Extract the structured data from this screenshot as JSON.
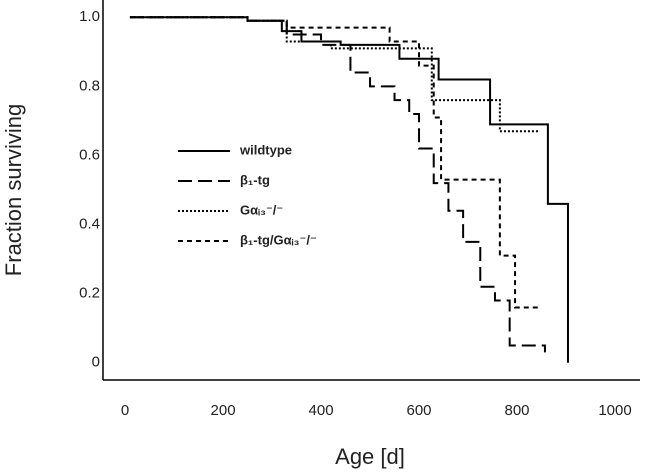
{
  "chart_data": {
    "type": "step",
    "xlabel": "Age [d]",
    "ylabel": "Fraction surviving",
    "xlim": [
      -45,
      1051
    ],
    "ylim": [
      -0.05,
      1.05
    ],
    "xticks": [
      0,
      200,
      400,
      600,
      800,
      1000
    ],
    "yticks": [
      0,
      0.2,
      0.4,
      0.6,
      0.8,
      {
        "value": 1,
        "label": "1.0"
      }
    ],
    "series": [
      {
        "name": "wildtype",
        "color": "#000000",
        "dash": "solid",
        "x": [
          10,
          250,
          320,
          360,
          440,
          560,
          640,
          745,
          863,
          904
        ],
        "values": [
          1.0,
          0.99,
          0.96,
          0.93,
          0.92,
          0.88,
          0.82,
          0.69,
          0.46,
          0.0
        ]
      },
      {
        "name": "β₁-tg",
        "color": "#000000",
        "dash": "long",
        "x": [
          10,
          250,
          330,
          400,
          460,
          500,
          550,
          580,
          600,
          630,
          660,
          690,
          725,
          755,
          785,
          857
        ],
        "values": [
          1.0,
          0.99,
          0.95,
          0.92,
          0.84,
          0.8,
          0.76,
          0.72,
          0.62,
          0.52,
          0.44,
          0.35,
          0.22,
          0.18,
          0.05,
          0.03
        ]
      },
      {
        "name": "Gαᵢ₃⁻/⁻",
        "color": "#000000",
        "dash": "dotted",
        "x": [
          10,
          250,
          330,
          420,
          626,
          765,
          847
        ],
        "values": [
          1.0,
          0.99,
          0.93,
          0.91,
          0.76,
          0.67,
          0.67
        ]
      },
      {
        "name": "β₁-tg/Gαᵢ₃⁻/⁻",
        "color": "#000000",
        "dash": "short",
        "x": [
          10,
          250,
          330,
          540,
          600,
          630,
          645,
          765,
          796,
          847
        ],
        "values": [
          1.0,
          0.99,
          0.97,
          0.93,
          0.86,
          0.71,
          0.53,
          0.31,
          0.16,
          0.16
        ]
      }
    ]
  }
}
